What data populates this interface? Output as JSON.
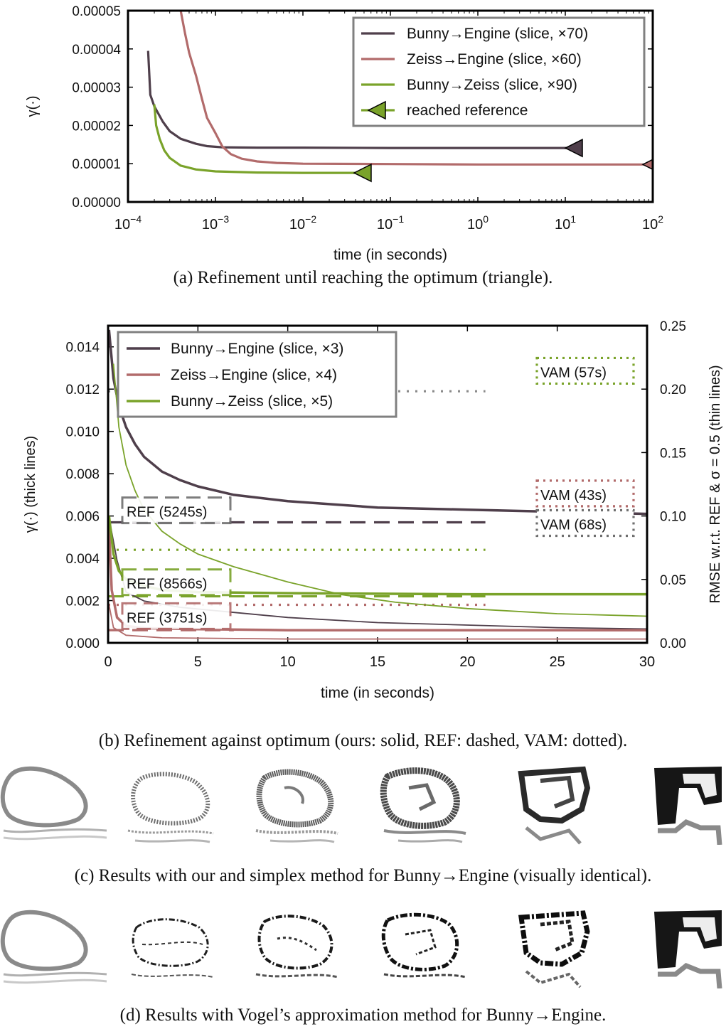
{
  "chart_data": [
    {
      "type": "line",
      "panel": "a",
      "xscale": "log",
      "xlim": [
        0.0001,
        100
      ],
      "ylim": [
        0,
        5e-05
      ],
      "xlabel": "time (in seconds)",
      "ylabel": "γ(·)",
      "x_ticks": [
        "10−4",
        "10−3",
        "10−2",
        "10−1",
        "100",
        "101",
        "102"
      ],
      "y_ticks": [
        "0.00000",
        "0.00001",
        "0.00002",
        "0.00003",
        "0.00004",
        "0.00005"
      ],
      "legend_position": "top-right",
      "legend": [
        "Bunny→Engine (slice, ×70)",
        "Zeiss→Engine (slice, ×60)",
        "Bunny→Zeiss (slice, ×90)",
        "reached reference"
      ],
      "series": [
        {
          "name": "Bunny→Engine (slice, ×70)",
          "color": "#4f3f4b",
          "points": [
            [
              0.00017,
              3.95e-05
            ],
            [
              0.00018,
              2.8e-05
            ],
            [
              0.0002,
              2.5e-05
            ],
            [
              0.00025,
              2.1e-05
            ],
            [
              0.0003,
              1.85e-05
            ],
            [
              0.0004,
              1.65e-05
            ],
            [
              0.0006,
              1.52e-05
            ],
            [
              0.0008,
              1.46e-05
            ],
            [
              0.0012,
              1.43e-05
            ],
            [
              0.003,
              1.42e-05
            ],
            [
              0.01,
              1.42e-05
            ],
            [
              0.1,
              1.41e-05
            ],
            [
              1,
              1.41e-05
            ],
            [
              13,
              1.41e-05
            ]
          ],
          "marker": [
            13,
            1.41e-05
          ]
        },
        {
          "name": "Zeiss→Engine (slice, ×60)",
          "color": "#b26b6b",
          "points": [
            [
              0.0004,
              5e-05
            ],
            [
              0.00045,
              4.4e-05
            ],
            [
              0.0005,
              3.9e-05
            ],
            [
              0.0006,
              3.3e-05
            ],
            [
              0.0007,
              2.7e-05
            ],
            [
              0.0008,
              2.2e-05
            ],
            [
              0.001,
              1.8e-05
            ],
            [
              0.0012,
              1.45e-05
            ],
            [
              0.0015,
              1.25e-05
            ],
            [
              0.002,
              1.13e-05
            ],
            [
              0.003,
              1.06e-05
            ],
            [
              0.005,
              1.02e-05
            ],
            [
              0.01,
              1e-05
            ],
            [
              0.1,
              9.9e-06
            ],
            [
              1,
              9.8e-06
            ],
            [
              100,
              9.8e-06
            ]
          ],
          "marker": [
            100,
            9.8e-06
          ]
        },
        {
          "name": "Bunny→Zeiss (slice, ×90)",
          "color": "#7aa32a",
          "points": [
            [
              0.0002,
              2.55e-05
            ],
            [
              0.00021,
              2e-05
            ],
            [
              0.00023,
              1.65e-05
            ],
            [
              0.00026,
              1.35e-05
            ],
            [
              0.0003,
              1.15e-05
            ],
            [
              0.0004,
              9.5e-06
            ],
            [
              0.0006,
              8.5e-06
            ],
            [
              0.001,
              8e-06
            ],
            [
              0.003,
              7.7e-06
            ],
            [
              0.01,
              7.6e-06
            ],
            [
              0.05,
              7.6e-06
            ]
          ],
          "marker": [
            0.05,
            7.6e-06
          ]
        }
      ]
    },
    {
      "type": "line",
      "panel": "b",
      "xlim": [
        0,
        30
      ],
      "ylim": [
        0,
        0.015
      ],
      "y2lim": [
        0,
        0.25
      ],
      "xlabel": "time (in seconds)",
      "ylabel": "γ(·) (thick lines)",
      "y2label": "RMSE w.r.t. REF & σ = 0.5 (thin lines)",
      "x_ticks": [
        "0",
        "5",
        "10",
        "15",
        "20",
        "25",
        "30"
      ],
      "y_ticks": [
        "0.000",
        "0.002",
        "0.004",
        "0.006",
        "0.008",
        "0.010",
        "0.012",
        "0.014"
      ],
      "y2_ticks": [
        "0.00",
        "0.05",
        "0.10",
        "0.15",
        "0.20",
        "0.25"
      ],
      "legend_position": "top-left",
      "legend": [
        "Bunny→Engine (slice, ×3)",
        "Zeiss→Engine (slice, ×4)",
        "Bunny→Zeiss (slice, ×5)"
      ],
      "series": [
        {
          "name": "Bunny→Engine (slice, ×3)",
          "color": "#4f3f4b",
          "style": "thick",
          "axis": "left",
          "points": [
            [
              0.05,
              0.0148
            ],
            [
              0.3,
              0.0125
            ],
            [
              0.6,
              0.0112
            ],
            [
              1,
              0.0102
            ],
            [
              1.5,
              0.0094
            ],
            [
              2,
              0.0088
            ],
            [
              3,
              0.0081
            ],
            [
              4,
              0.0077
            ],
            [
              5,
              0.0074
            ],
            [
              7,
              0.007
            ],
            [
              10,
              0.0067
            ],
            [
              15,
              0.0064
            ],
            [
              20,
              0.0063
            ],
            [
              25,
              0.0062
            ],
            [
              30,
              0.0061
            ]
          ]
        },
        {
          "name": "Bunny→Engine (slice, ×3) RMSE",
          "color": "#4f3f4b",
          "style": "thin",
          "axis": "right",
          "points": [
            [
              0.1,
              0.095
            ],
            [
              0.5,
              0.065
            ],
            [
              1,
              0.04
            ],
            [
              2,
              0.033
            ],
            [
              4,
              0.028
            ],
            [
              7,
              0.024
            ],
            [
              10,
              0.02
            ],
            [
              15,
              0.016
            ],
            [
              20,
              0.014
            ],
            [
              25,
              0.012
            ],
            [
              30,
              0.011
            ]
          ]
        },
        {
          "name": "Zeiss→Engine (slice, ×4)",
          "color": "#b26b6b",
          "style": "thick",
          "axis": "left",
          "points": [
            [
              0.05,
              0.0055
            ],
            [
              0.2,
              0.0025
            ],
            [
              0.5,
              0.0012
            ],
            [
              1,
              0.0008
            ],
            [
              2,
              0.0007
            ],
            [
              5,
              0.00065
            ],
            [
              10,
              0.0006
            ],
            [
              20,
              0.0006
            ],
            [
              30,
              0.0006
            ]
          ]
        },
        {
          "name": "Zeiss→Engine (slice, ×4) RMSE",
          "color": "#b26b6b",
          "style": "thin",
          "axis": "right",
          "points": [
            [
              0.05,
              0.03
            ],
            [
              0.3,
              0.012
            ],
            [
              1,
              0.006
            ],
            [
              3,
              0.004
            ],
            [
              10,
              0.003
            ],
            [
              20,
              0.003
            ],
            [
              30,
              0.003
            ]
          ]
        },
        {
          "name": "Bunny→Zeiss (slice, ×5)",
          "color": "#7aa32a",
          "style": "thick",
          "axis": "left",
          "points": [
            [
              0.05,
              0.006
            ],
            [
              0.3,
              0.0042
            ],
            [
              0.6,
              0.0034
            ],
            [
              1,
              0.003
            ],
            [
              2,
              0.0027
            ],
            [
              3,
              0.0025
            ],
            [
              5,
              0.0024
            ],
            [
              10,
              0.00235
            ],
            [
              20,
              0.0023
            ],
            [
              30,
              0.0023
            ]
          ]
        },
        {
          "name": "Bunny→Zeiss (slice, ×5) RMSE",
          "color": "#7aa32a",
          "style": "thin",
          "axis": "right",
          "points": [
            [
              0.3,
              0.22
            ],
            [
              0.6,
              0.17
            ],
            [
              1,
              0.14
            ],
            [
              1.5,
              0.12
            ],
            [
              2,
              0.105
            ],
            [
              3,
              0.088
            ],
            [
              4,
              0.078
            ],
            [
              5,
              0.07
            ],
            [
              7,
              0.06
            ],
            [
              10,
              0.048
            ],
            [
              13,
              0.038
            ],
            [
              16,
              0.032
            ],
            [
              20,
              0.027
            ],
            [
              25,
              0.023
            ],
            [
              30,
              0.021
            ]
          ]
        }
      ],
      "ref_lines": [
        {
          "color": "#4f3f4b",
          "y": 0.0057,
          "x": [
            0,
            21
          ]
        },
        {
          "color": "#7aa32a",
          "y": 0.0022,
          "x": [
            0,
            21
          ]
        },
        {
          "color": "#b26b6b",
          "y": 0.0006,
          "x": [
            0,
            7
          ]
        }
      ],
      "vam_lines": [
        {
          "color": "#8a8a8a",
          "y": 0.0119,
          "x": [
            0,
            21
          ]
        },
        {
          "color": "#7aa32a",
          "y": 0.0044,
          "x": [
            0,
            21
          ]
        },
        {
          "color": "#b26b6b",
          "y": 0.0018,
          "x": [
            0,
            21
          ]
        }
      ],
      "ref_labels": [
        {
          "text": "REF (5245s)",
          "color": "#6f6f6f",
          "y": 0.0062
        },
        {
          "text": "REF (8566s)",
          "color": "#7aa32a",
          "y": 0.0028
        },
        {
          "text": "REF (3751s)",
          "color": "#b26b6b",
          "y": 0.0012
        }
      ],
      "vam_labels": [
        {
          "text": "VAM (57s)",
          "color": "#7aa32a",
          "y": 0.0128
        },
        {
          "text": "VAM (43s)",
          "color": "#b26b6b",
          "y": 0.007
        },
        {
          "text": "VAM (68s)",
          "color": "#6f6f6f",
          "y": 0.0056
        }
      ]
    }
  ],
  "captions": {
    "a": "(a) Refinement until reaching the optimum (triangle).",
    "b": "(b) Refinement against optimum (ours: solid, REF: dashed, VAM: dotted).",
    "c": "(c) Results with our and simplex method for Bunny→Engine (visually identical).",
    "d": "(d)  Results with Vogel’s approximation method for Bunny→Engine."
  }
}
